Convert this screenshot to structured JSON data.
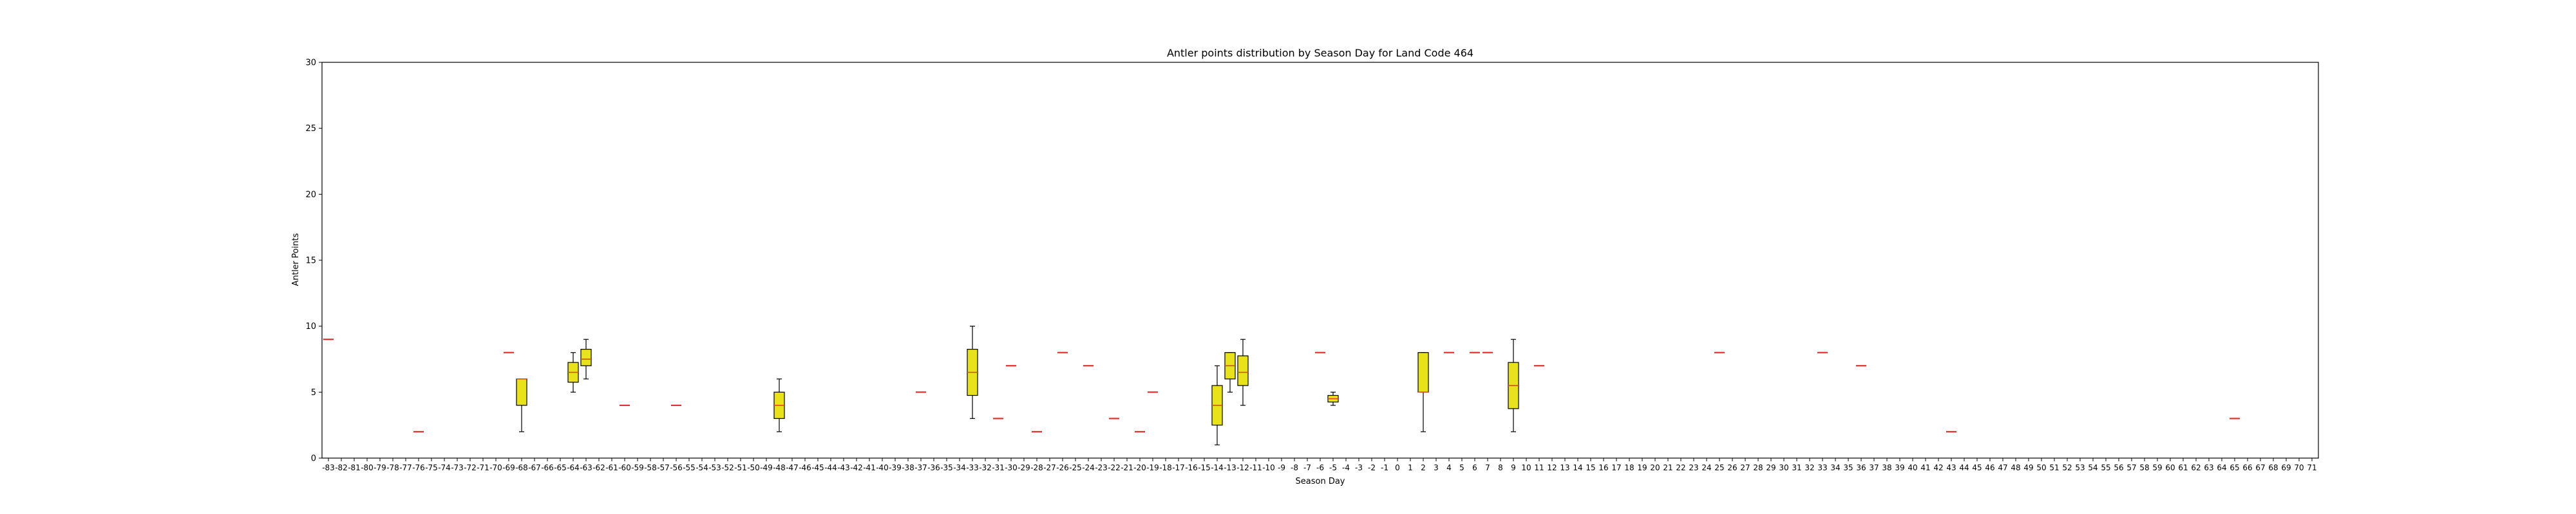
{
  "chart_data": {
    "type": "box",
    "title": "Antler points distribution by Season Day for Land Code 464",
    "xlabel": "Season Day",
    "ylabel": "Antler Points",
    "ylim": [
      0,
      30
    ],
    "yticks": [
      0,
      5,
      10,
      15,
      20,
      25,
      30
    ],
    "x_range": [
      -83,
      71
    ],
    "grid": false,
    "box_color": "#e8e21c",
    "median_color": "#d94a1e",
    "single_color": "#e03030",
    "boxes": [
      {
        "day": -83,
        "min": 9,
        "q1": 9,
        "median": 9,
        "q3": 9,
        "max": 9
      },
      {
        "day": -76,
        "min": 2,
        "q1": 2,
        "median": 2,
        "q3": 2,
        "max": 2
      },
      {
        "day": -69,
        "min": 8,
        "q1": 8,
        "median": 8,
        "q3": 8,
        "max": 8
      },
      {
        "day": -68,
        "min": 2,
        "q1": 4,
        "median": 6,
        "q3": 6,
        "max": 6
      },
      {
        "day": -64,
        "min": 5,
        "q1": 5.75,
        "median": 6.5,
        "q3": 7.25,
        "max": 8
      },
      {
        "day": -63,
        "min": 6,
        "q1": 7,
        "median": 7.5,
        "q3": 8.25,
        "max": 9
      },
      {
        "day": -60,
        "min": 4,
        "q1": 4,
        "median": 4,
        "q3": 4,
        "max": 4
      },
      {
        "day": -56,
        "min": 4,
        "q1": 4,
        "median": 4,
        "q3": 4,
        "max": 4
      },
      {
        "day": -48,
        "min": 2,
        "q1": 3,
        "median": 4,
        "q3": 5,
        "max": 6
      },
      {
        "day": -37,
        "min": 5,
        "q1": 5,
        "median": 5,
        "q3": 5,
        "max": 5
      },
      {
        "day": -33,
        "min": 3,
        "q1": 4.75,
        "median": 6.5,
        "q3": 8.25,
        "max": 10
      },
      {
        "day": -31,
        "min": 3,
        "q1": 3,
        "median": 3,
        "q3": 3,
        "max": 3
      },
      {
        "day": -30,
        "min": 7,
        "q1": 7,
        "median": 7,
        "q3": 7,
        "max": 7
      },
      {
        "day": -28,
        "min": 2,
        "q1": 2,
        "median": 2,
        "q3": 2,
        "max": 2
      },
      {
        "day": -26,
        "min": 8,
        "q1": 8,
        "median": 8,
        "q3": 8,
        "max": 8
      },
      {
        "day": -24,
        "min": 7,
        "q1": 7,
        "median": 7,
        "q3": 7,
        "max": 7
      },
      {
        "day": -22,
        "min": 3,
        "q1": 3,
        "median": 3,
        "q3": 3,
        "max": 3
      },
      {
        "day": -20,
        "min": 2,
        "q1": 2,
        "median": 2,
        "q3": 2,
        "max": 2
      },
      {
        "day": -19,
        "min": 5,
        "q1": 5,
        "median": 5,
        "q3": 5,
        "max": 5
      },
      {
        "day": -14,
        "min": 1,
        "q1": 2.5,
        "median": 4,
        "q3": 5.5,
        "max": 7
      },
      {
        "day": -13,
        "min": 5,
        "q1": 6,
        "median": 7,
        "q3": 8,
        "max": 8
      },
      {
        "day": -12,
        "min": 4,
        "q1": 5.5,
        "median": 6.5,
        "q3": 7.75,
        "max": 9
      },
      {
        "day": -6,
        "min": 8,
        "q1": 8,
        "median": 8,
        "q3": 8,
        "max": 8
      },
      {
        "day": -5,
        "min": 4,
        "q1": 4.25,
        "median": 4.5,
        "q3": 4.75,
        "max": 5
      },
      {
        "day": 2,
        "min": 2,
        "q1": 5,
        "median": 5,
        "q3": 8,
        "max": 8
      },
      {
        "day": 4,
        "min": 8,
        "q1": 8,
        "median": 8,
        "q3": 8,
        "max": 8
      },
      {
        "day": 6,
        "min": 8,
        "q1": 8,
        "median": 8,
        "q3": 8,
        "max": 8
      },
      {
        "day": 7,
        "min": 8,
        "q1": 8,
        "median": 8,
        "q3": 8,
        "max": 8
      },
      {
        "day": 9,
        "min": 2,
        "q1": 3.75,
        "median": 5.5,
        "q3": 7.25,
        "max": 9
      },
      {
        "day": 11,
        "min": 7,
        "q1": 7,
        "median": 7,
        "q3": 7,
        "max": 7
      },
      {
        "day": 25,
        "min": 8,
        "q1": 8,
        "median": 8,
        "q3": 8,
        "max": 8
      },
      {
        "day": 33,
        "min": 8,
        "q1": 8,
        "median": 8,
        "q3": 8,
        "max": 8
      },
      {
        "day": 36,
        "min": 7,
        "q1": 7,
        "median": 7,
        "q3": 7,
        "max": 7
      },
      {
        "day": 43,
        "min": 2,
        "q1": 2,
        "median": 2,
        "q3": 2,
        "max": 2
      },
      {
        "day": 65,
        "min": 3,
        "q1": 3,
        "median": 3,
        "q3": 3,
        "max": 3
      }
    ]
  }
}
